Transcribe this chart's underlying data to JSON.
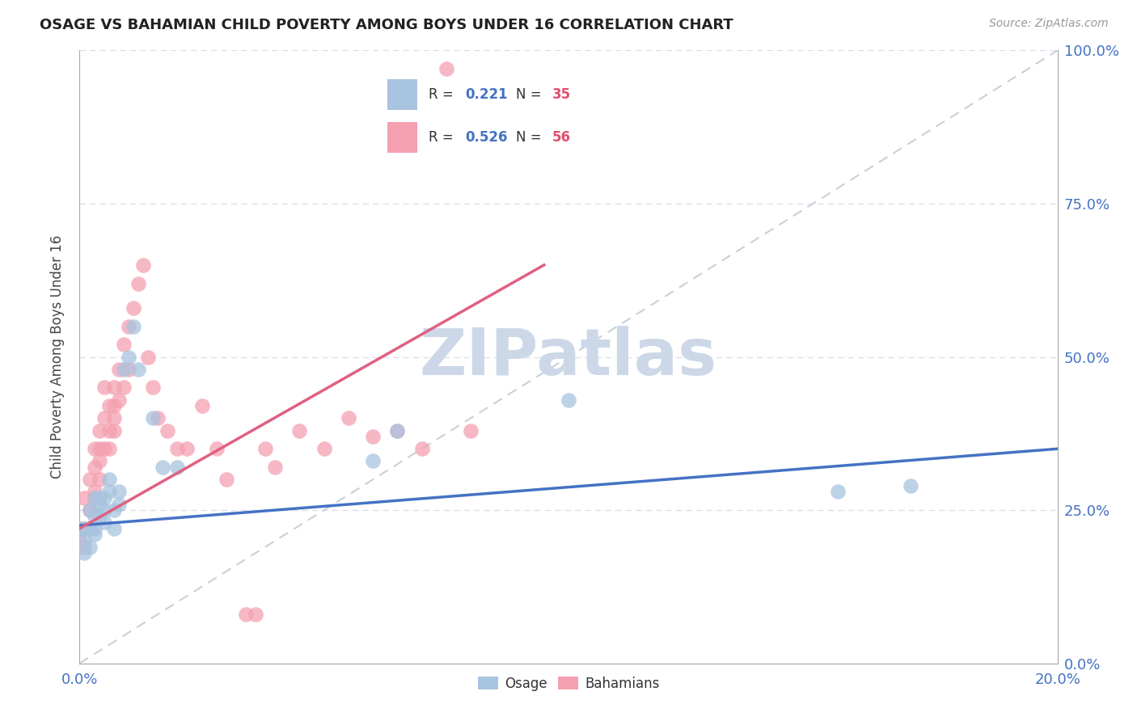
{
  "title": "OSAGE VS BAHAMIAN CHILD POVERTY AMONG BOYS UNDER 16 CORRELATION CHART",
  "source": "Source: ZipAtlas.com",
  "ylabel": "Child Poverty Among Boys Under 16",
  "ylabel_ticks": [
    "0.0%",
    "25.0%",
    "50.0%",
    "75.0%",
    "100.0%"
  ],
  "ylabel_vals": [
    0.0,
    0.25,
    0.5,
    0.75,
    1.0
  ],
  "xlabel_ticks": [
    "0.0%",
    "20.0%"
  ],
  "xlabel_vals": [
    0.0,
    0.2
  ],
  "xlim": [
    0.0,
    0.2
  ],
  "ylim": [
    0.0,
    1.0
  ],
  "osage_color": "#a8c4e0",
  "bahamian_color": "#f4a0b0",
  "osage_line_color": "#4472c4",
  "bahamian_line_color": "#e06080",
  "ref_line_color": "#c0c8d0",
  "grid_color": "#d8dfe8",
  "watermark": "ZIPatlas",
  "watermark_color": "#ccd8e8",
  "tick_color": "#4472c4",
  "osage_x": [
    0.0,
    0.001,
    0.001,
    0.001,
    0.002,
    0.002,
    0.002,
    0.003,
    0.003,
    0.003,
    0.003,
    0.004,
    0.004,
    0.004,
    0.005,
    0.005,
    0.005,
    0.006,
    0.006,
    0.007,
    0.007,
    0.008,
    0.008,
    0.009,
    0.01,
    0.011,
    0.012,
    0.015,
    0.017,
    0.02,
    0.06,
    0.065,
    0.1,
    0.155,
    0.17
  ],
  "osage_y": [
    0.22,
    0.2,
    0.18,
    0.22,
    0.22,
    0.25,
    0.19,
    0.27,
    0.24,
    0.21,
    0.22,
    0.27,
    0.26,
    0.24,
    0.27,
    0.25,
    0.23,
    0.3,
    0.28,
    0.25,
    0.22,
    0.28,
    0.26,
    0.48,
    0.5,
    0.55,
    0.48,
    0.4,
    0.32,
    0.32,
    0.33,
    0.38,
    0.43,
    0.28,
    0.29
  ],
  "bahamian_x": [
    0.0,
    0.0,
    0.001,
    0.001,
    0.001,
    0.002,
    0.002,
    0.002,
    0.003,
    0.003,
    0.003,
    0.003,
    0.004,
    0.004,
    0.004,
    0.004,
    0.005,
    0.005,
    0.005,
    0.006,
    0.006,
    0.006,
    0.007,
    0.007,
    0.007,
    0.007,
    0.008,
    0.008,
    0.009,
    0.009,
    0.01,
    0.01,
    0.011,
    0.012,
    0.013,
    0.014,
    0.015,
    0.016,
    0.018,
    0.02,
    0.022,
    0.025,
    0.028,
    0.03,
    0.034,
    0.036,
    0.038,
    0.04,
    0.045,
    0.05,
    0.055,
    0.06,
    0.065,
    0.07,
    0.075,
    0.08
  ],
  "bahamian_y": [
    0.22,
    0.2,
    0.27,
    0.22,
    0.19,
    0.25,
    0.22,
    0.3,
    0.32,
    0.28,
    0.35,
    0.27,
    0.33,
    0.38,
    0.3,
    0.35,
    0.4,
    0.35,
    0.45,
    0.42,
    0.38,
    0.35,
    0.42,
    0.38,
    0.45,
    0.4,
    0.43,
    0.48,
    0.52,
    0.45,
    0.55,
    0.48,
    0.58,
    0.62,
    0.65,
    0.5,
    0.45,
    0.4,
    0.38,
    0.35,
    0.35,
    0.42,
    0.35,
    0.3,
    0.08,
    0.08,
    0.35,
    0.32,
    0.38,
    0.35,
    0.4,
    0.37,
    0.38,
    0.35,
    0.97,
    0.38
  ],
  "osage_trend_x": [
    0.0,
    0.2
  ],
  "osage_trend_y": [
    0.225,
    0.35
  ],
  "bahamian_trend_x": [
    0.0,
    0.095
  ],
  "bahamian_trend_y": [
    0.22,
    0.65
  ]
}
